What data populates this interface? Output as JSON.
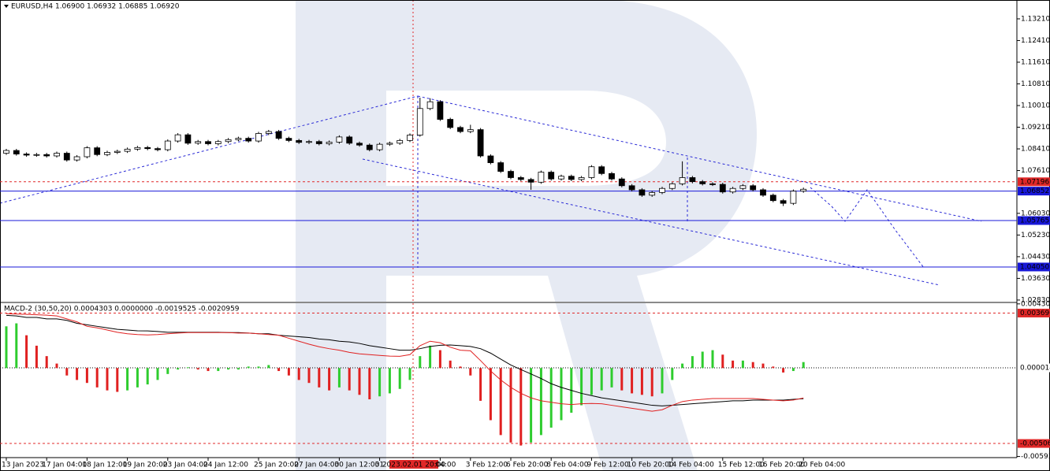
{
  "chart_data": [
    {
      "type": "candlestick",
      "title": "EURUSD,H4  1.06900 1.06932 1.06885 1.06920",
      "categories": [
        "13 Jan 2023",
        null,
        null,
        null,
        "17 Jan 04:00",
        null,
        null,
        null,
        "18 Jan 12:00",
        null,
        null,
        null,
        "19 Jan 20:00",
        null,
        null,
        null,
        "23 Jan 04:00",
        null,
        null,
        null,
        "24 Jan 12:00",
        null,
        null,
        null,
        null,
        "25 Jan 20:00",
        null,
        null,
        null,
        "27 Jan 04:00",
        null,
        null,
        null,
        "30 Jan 12:00",
        null,
        null,
        null,
        "31",
        null,
        null,
        "2023.02.01 20:00",
        null,
        null,
        "04:00",
        null,
        null,
        "3 Feb 12:00",
        null,
        null,
        null,
        "6 Feb 20:00",
        null,
        null,
        null,
        "8 Feb 04:00",
        null,
        null,
        null,
        "9 Feb 12:00",
        null,
        null,
        null,
        "10 Feb 20:00",
        null,
        null,
        null,
        "14 Feb 04:00",
        null,
        null,
        null,
        null,
        "15 Feb 12:00",
        null,
        null,
        null,
        "16 Feb 20:00",
        null,
        null,
        null,
        "20 Feb 04:00"
      ],
      "crosshair_index": 40,
      "open": [
        1.0825,
        1.0835,
        1.0822,
        1.0818,
        1.082,
        1.0815,
        1.0825,
        1.08,
        1.0812,
        1.0845,
        1.082,
        1.0828,
        1.0832,
        1.084,
        1.0846,
        1.0842,
        1.0838,
        1.087,
        1.0893,
        1.0862,
        1.0868,
        1.086,
        1.0868,
        1.0875,
        1.088,
        1.087,
        1.0898,
        1.0905,
        1.088,
        1.0872,
        1.0865,
        1.0868,
        1.086,
        1.0866,
        1.0885,
        1.0862,
        1.0855,
        1.0838,
        1.0858,
        1.0862,
        1.0872,
        1.0892,
        1.099,
        1.1015,
        1.095,
        1.092,
        1.0905,
        1.0912,
        1.0815,
        1.079,
        1.0758,
        1.0735,
        1.0728,
        1.0718,
        1.0755,
        1.073,
        1.074,
        1.0728,
        1.0735,
        1.0775,
        1.075,
        1.073,
        1.0705,
        1.069,
        1.067,
        1.068,
        1.0695,
        1.0712,
        1.0735,
        1.072,
        1.0712,
        1.071,
        1.0682,
        1.0695,
        1.0705,
        1.069,
        1.067,
        1.065,
        1.064,
        1.0685
      ],
      "high": [
        1.0841,
        1.0841,
        1.0828,
        1.0826,
        1.0826,
        1.0831,
        1.0831,
        1.0818,
        1.0851,
        1.0851,
        1.0834,
        1.0838,
        1.0846,
        1.0852,
        1.0852,
        1.0848,
        1.0876,
        1.0899,
        1.0899,
        1.0874,
        1.0874,
        1.0874,
        1.0881,
        1.0886,
        1.0886,
        1.0904,
        1.0911,
        1.0911,
        1.0886,
        1.0878,
        1.0874,
        1.0874,
        1.0872,
        1.0891,
        1.0891,
        1.0868,
        1.0861,
        1.0864,
        1.0868,
        1.0878,
        1.0898,
        1.103,
        1.1028,
        1.1021,
        1.0956,
        1.0926,
        1.093,
        1.0918,
        1.0821,
        1.0796,
        1.0764,
        1.0741,
        1.0734,
        1.0761,
        1.0761,
        1.0746,
        1.0746,
        1.0741,
        1.0781,
        1.0781,
        1.0756,
        1.0736,
        1.0711,
        1.0696,
        1.0686,
        1.0701,
        1.0718,
        1.0795,
        1.0741,
        1.0726,
        1.0718,
        1.0716,
        1.0701,
        1.0711,
        1.0711,
        1.0696,
        1.0676,
        1.0656,
        1.0691,
        1.0698
      ],
      "low": [
        1.0819,
        1.0816,
        1.0812,
        1.0812,
        1.0809,
        1.0809,
        1.0794,
        1.0794,
        1.0806,
        1.0814,
        1.0814,
        1.0822,
        1.0826,
        1.0834,
        1.0836,
        1.0832,
        1.0832,
        1.0864,
        1.0856,
        1.0856,
        1.0854,
        1.0854,
        1.0862,
        1.0869,
        1.0864,
        1.0864,
        1.0892,
        1.0874,
        1.0866,
        1.0859,
        1.0859,
        1.0854,
        1.0854,
        1.086,
        1.0856,
        1.0849,
        1.0832,
        1.0832,
        1.0852,
        1.0856,
        1.0866,
        1.0886,
        1.0984,
        1.0944,
        1.0914,
        1.0899,
        1.0899,
        1.0809,
        1.0784,
        1.0752,
        1.0729,
        1.0722,
        1.069,
        1.0712,
        1.0724,
        1.0724,
        1.0722,
        1.0722,
        1.0729,
        1.0744,
        1.0724,
        1.0699,
        1.0684,
        1.0664,
        1.0664,
        1.0674,
        1.0689,
        1.0706,
        1.0714,
        1.0706,
        1.0704,
        1.0676,
        1.0676,
        1.0689,
        1.0684,
        1.0664,
        1.0644,
        1.063,
        1.0634,
        1.0679
      ],
      "close": [
        1.0835,
        1.0822,
        1.0818,
        1.082,
        1.0815,
        1.0825,
        1.08,
        1.0812,
        1.0845,
        1.082,
        1.0828,
        1.0832,
        1.084,
        1.0846,
        1.0842,
        1.0838,
        1.087,
        1.0893,
        1.0862,
        1.0868,
        1.086,
        1.0868,
        1.0875,
        1.088,
        1.087,
        1.0898,
        1.0905,
        1.088,
        1.0872,
        1.0865,
        1.0868,
        1.086,
        1.0866,
        1.0885,
        1.0862,
        1.0855,
        1.0838,
        1.0858,
        1.0862,
        1.0872,
        1.0892,
        1.099,
        1.1015,
        1.095,
        1.092,
        1.0905,
        1.0912,
        1.0815,
        1.079,
        1.0758,
        1.0735,
        1.0728,
        1.0718,
        1.0755,
        1.073,
        1.074,
        1.0728,
        1.0735,
        1.0775,
        1.075,
        1.073,
        1.0705,
        1.069,
        1.067,
        1.068,
        1.0695,
        1.0712,
        1.0735,
        1.072,
        1.0712,
        1.071,
        1.0682,
        1.0695,
        1.0705,
        1.069,
        1.067,
        1.065,
        1.064,
        1.0685,
        1.0692
      ],
      "up_color": "#ffffff",
      "down_color": "#000000",
      "wick_color": "#000000",
      "ylim": [
        1.0277,
        1.13848
      ],
      "yticks": [
        {
          "value": 1.1321,
          "label": "1.13210"
        },
        {
          "value": 1.1241,
          "label": "1.12410"
        },
        {
          "value": 1.1161,
          "label": "1.11610"
        },
        {
          "value": 1.1081,
          "label": "1.10810"
        },
        {
          "value": 1.1001,
          "label": "1.10010"
        },
        {
          "value": 1.0921,
          "label": "1.09210"
        },
        {
          "value": 1.0841,
          "label": "1.08410"
        },
        {
          "value": 1.0761,
          "label": "1.07610"
        },
        {
          "value": 1.0603,
          "label": "1.06030"
        },
        {
          "value": 1.0523,
          "label": "1.05230"
        },
        {
          "value": 1.0443,
          "label": "1.04430"
        },
        {
          "value": 1.0363,
          "label": "1.03630"
        },
        {
          "value": 1.0283,
          "label": "1.02830"
        }
      ],
      "levels": [
        {
          "value": 1.07196,
          "color": "#e02828",
          "style": "dashed"
        },
        {
          "value": 1.06852,
          "color": "#1818d8",
          "style": "solid"
        },
        {
          "value": 1.05765,
          "color": "#1818d8",
          "style": "solid"
        },
        {
          "value": 1.0405,
          "label": "1.04050",
          "color": "#1818d8",
          "style": "solid"
        }
      ]
    },
    {
      "type": "macd",
      "title": "MACD-2 (30,50,20) 0.0004303 0.0000000 -0.0019525 -0.0020959",
      "histogram": {
        "up_color": "#2ecc2e",
        "down_color": "#e02020",
        "values": [
          0.0028,
          0.003,
          0.0022,
          0.0015,
          0.0008,
          0.0003,
          -0.0005,
          -0.0008,
          -0.001,
          -0.0013,
          -0.0015,
          -0.0016,
          -0.0015,
          -0.0013,
          -0.0011,
          -0.0008,
          -0.0004,
          -0.0001,
          5e-05,
          -0.0001,
          -0.0002,
          -0.0002,
          -0.0001,
          -0.0001,
          0.0001,
          0.0001,
          0.0002,
          -0.0002,
          -0.0005,
          -0.0008,
          -0.001,
          -0.0013,
          -0.0015,
          -0.0013,
          -0.0015,
          -0.0018,
          -0.0021,
          -0.0019,
          -0.0017,
          -0.0014,
          -0.0008,
          0.0008,
          0.0015,
          0.0012,
          0.0005,
          0.0001,
          -0.0005,
          -0.0022,
          -0.0035,
          -0.0045,
          -0.005,
          -0.0052,
          -0.005,
          -0.0045,
          -0.004,
          -0.0035,
          -0.003,
          -0.0025,
          -0.0018,
          -0.0015,
          -0.0013,
          -0.0015,
          -0.0017,
          -0.0018,
          -0.0019,
          -0.0017,
          -0.0008,
          0.0003,
          0.0008,
          0.0011,
          0.0012,
          0.0009,
          0.0005,
          0.0005,
          0.0004,
          0.0003,
          0.0001,
          -0.0003,
          -0.0002,
          0.0004
        ]
      },
      "lines": [
        {
          "color": "#000000",
          "values": [
            0.00354,
            0.0035,
            0.0034,
            0.0034,
            0.0033,
            0.0033,
            0.0032,
            0.003,
            0.0029,
            0.0028,
            0.0027,
            0.0026,
            0.00255,
            0.0025,
            0.00249,
            0.00245,
            0.0024,
            0.0024,
            0.0024,
            0.0024,
            0.0024,
            0.0024,
            0.00238,
            0.00238,
            0.00235,
            0.0023,
            0.0023,
            0.0022,
            0.00215,
            0.0021,
            0.00205,
            0.00195,
            0.0019,
            0.0018,
            0.00175,
            0.00165,
            0.0015,
            0.0014,
            0.0013,
            0.0012,
            0.0012,
            0.0013,
            0.00145,
            0.00153,
            0.00155,
            0.0015,
            0.00145,
            0.0013,
            0.001,
            0.0006,
            0.0002,
            -0.0001,
            -0.0004,
            -0.0007,
            -0.00105,
            -0.0013,
            -0.0015,
            -0.0017,
            -0.00185,
            -0.002,
            -0.0021,
            -0.0022,
            -0.0023,
            -0.0024,
            -0.0025,
            -0.00254,
            -0.0025,
            -0.00245,
            -0.0024,
            -0.00235,
            -0.0023,
            -0.00225,
            -0.0022,
            -0.0022,
            -0.00215,
            -0.00215,
            -0.00215,
            -0.00215,
            -0.0021,
            -0.00206
          ]
        },
        {
          "color": "#e02020",
          "values": [
            0.00365,
            0.00362,
            0.0036,
            0.00358,
            0.00355,
            0.0035,
            0.0033,
            0.0031,
            0.0028,
            0.0027,
            0.00255,
            0.0024,
            0.0023,
            0.00225,
            0.00222,
            0.00225,
            0.0023,
            0.00235,
            0.00238,
            0.00238,
            0.00238,
            0.00238,
            0.00238,
            0.00235,
            0.00235,
            0.0023,
            0.00225,
            0.0022,
            0.002,
            0.0018,
            0.0016,
            0.00143,
            0.0013,
            0.0012,
            0.00105,
            0.00095,
            0.0009,
            0.00085,
            0.0008,
            0.00079,
            0.0009,
            0.0015,
            0.0018,
            0.0017,
            0.0014,
            0.0012,
            0.00116,
            0.0005,
            -0.0002,
            -0.0008,
            -0.0013,
            -0.0017,
            -0.002,
            -0.0022,
            -0.0023,
            -0.0024,
            -0.00245,
            -0.0024,
            -0.00238,
            -0.0024,
            -0.0025,
            -0.0026,
            -0.0027,
            -0.0028,
            -0.0029,
            -0.0028,
            -0.0025,
            -0.00225,
            -0.00215,
            -0.0021,
            -0.00205,
            -0.00205,
            -0.00205,
            -0.00205,
            -0.00205,
            -0.0021,
            -0.00215,
            -0.0022,
            -0.00215,
            -0.00201
          ]
        }
      ],
      "ylim": [
        -0.00596,
        0.00435
      ],
      "yticks": [
        0.0043063,
        -0.0059378
      ],
      "levels": [
        {
          "value": 0.0036908,
          "color": "#e02828",
          "style": "dashed",
          "boxed": true
        },
        {
          "value": 1.48e-05,
          "color": "#000000",
          "style": "dotted",
          "boxed": false
        },
        {
          "value": -0.0050637,
          "color": "#e02828",
          "style": "dashed",
          "boxed": true
        }
      ]
    }
  ]
}
